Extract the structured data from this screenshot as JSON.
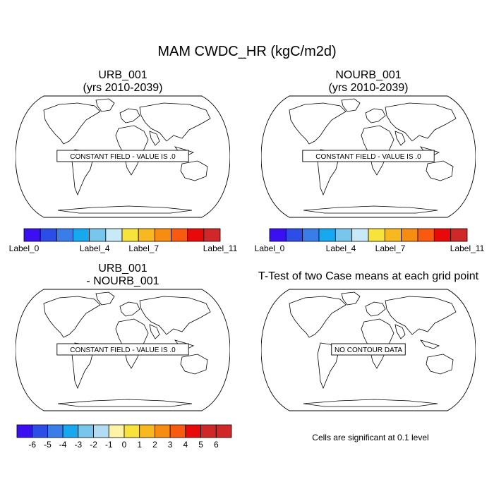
{
  "main_title": "MAM CWDC_HR (kgC/m2d)",
  "panels": [
    {
      "title": "URB_001\n(yrs 2010-2039)",
      "message": "CONSTANT FIELD - VALUE IS .0"
    },
    {
      "title": "NOURB_001\n(yrs 2010-2039)",
      "message": "CONSTANT FIELD - VALUE IS .0"
    },
    {
      "title": "URB_001\n- NOURB_001",
      "message": "CONSTANT FIELD - VALUE IS .0"
    },
    {
      "title": "T-Test of two Case means at each grid point",
      "message": "NO CONTOUR DATA"
    }
  ],
  "colorbar_top": {
    "colors": [
      "#3a0ff0",
      "#2c4de6",
      "#3a7de8",
      "#18a8f0",
      "#78c6ec",
      "#c8eaf6",
      "#f8e23c",
      "#f8b820",
      "#f88c10",
      "#f85a10",
      "#e80a0a",
      "#d02828"
    ],
    "labels": [
      "Label_0",
      "Label_4",
      "Label_7",
      "Label_11"
    ]
  },
  "colorbar_bottom": {
    "colors": [
      "#3a0ff0",
      "#2c4de6",
      "#3a7de8",
      "#18a8f0",
      "#78c6ec",
      "#b2dcf4",
      "#fff3a8",
      "#f8e23c",
      "#f8b820",
      "#f88c10",
      "#f85a10",
      "#e80a0a",
      "#d02828"
    ],
    "labels": [
      "-6",
      "-5",
      "-4",
      "-3",
      "-2",
      "-1",
      "0",
      "1",
      "2",
      "3",
      "4",
      "5",
      "6"
    ]
  },
  "significance_note": "Cells are significant at 0.1 level"
}
